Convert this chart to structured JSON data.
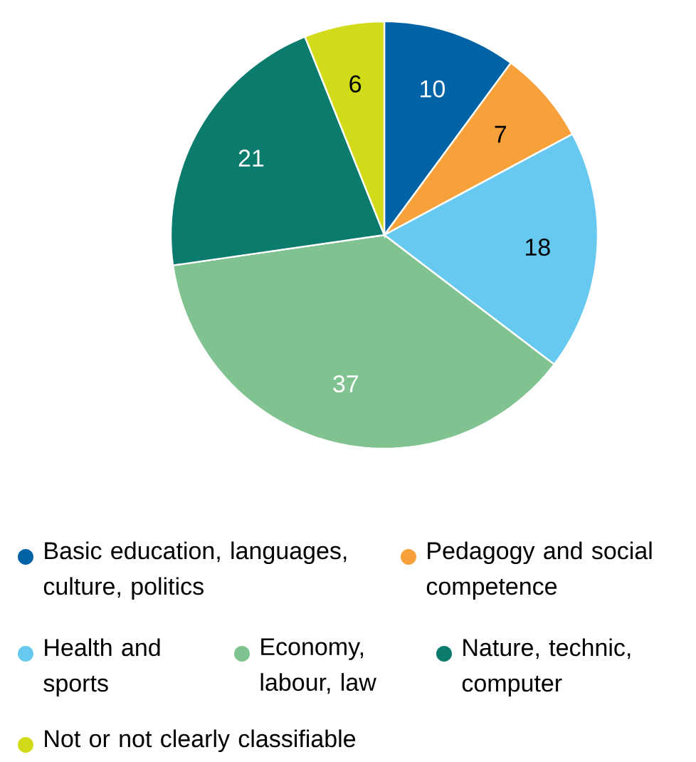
{
  "chart_data": {
    "type": "pie",
    "categories": [
      "Basic education, languages, culture, politics",
      "Pedagogy and social competence",
      "Health and sports",
      "Economy, labour, law",
      "Nature, technic, computer",
      "Not or not clearly classifiable"
    ],
    "values": [
      10,
      7,
      18,
      37,
      21,
      6
    ],
    "colors": [
      "#0063a6",
      "#f7a13b",
      "#67c9f0",
      "#80c391",
      "#0a7b6c",
      "#d1db1a"
    ],
    "data_labels": true,
    "legend": "bottom"
  }
}
